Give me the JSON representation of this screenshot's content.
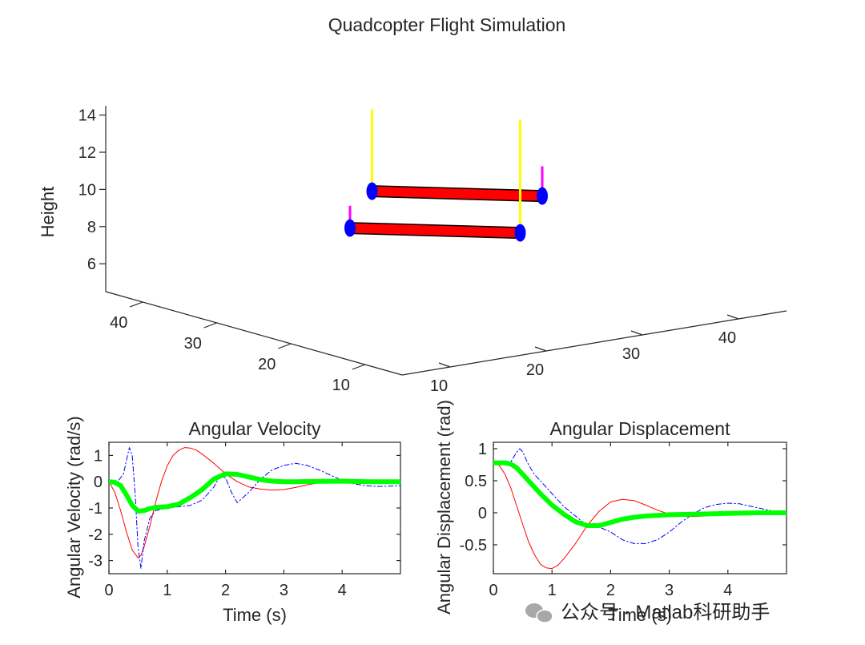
{
  "figure_title": "Quadcopter Flight Simulation",
  "watermark": "公众号 · Matlab科研助手",
  "colors": {
    "arm": "#ff0000",
    "rotor": "#0000ff",
    "thrust_main": "#ffff00",
    "thrust_small": "#ff00ff",
    "series_red": "#ff0000",
    "series_blue": "#0000ff",
    "series_green": "#00ff00"
  },
  "chart_data": [
    {
      "type": "scatter3d",
      "title": "",
      "zlabel": "Height",
      "z_ticks": [
        6,
        8,
        10,
        12,
        14
      ],
      "x_ticks": [
        10,
        20,
        30,
        40
      ],
      "y_ticks": [
        10,
        20,
        30,
        40
      ],
      "x_range": [
        5,
        45
      ],
      "y_range": [
        5,
        45
      ],
      "z_range": [
        4.5,
        14.5
      ],
      "quadcopter": {
        "center": [
          25,
          25,
          9.3
        ],
        "rotors": [
          {
            "x": 25,
            "y": 35,
            "z": 9.3
          },
          {
            "x": 35,
            "y": 25,
            "z": 9.3
          },
          {
            "x": 25,
            "y": 15,
            "z": 9.3
          },
          {
            "x": 15,
            "y": 25,
            "z": 9.3
          }
        ],
        "thrust_vectors": [
          {
            "rotor": 0,
            "length": 4.4,
            "color": "thrust_main"
          },
          {
            "rotor": 2,
            "length": 6.1,
            "color": "thrust_main"
          },
          {
            "rotor": 1,
            "length": 1.6,
            "color": "thrust_small"
          },
          {
            "rotor": 3,
            "length": 1.2,
            "color": "thrust_small"
          }
        ]
      }
    },
    {
      "type": "line",
      "title": "Angular Velocity",
      "xlabel": "Time (s)",
      "ylabel": "Angular Velocity (rad/s)",
      "xlim": [
        0,
        5
      ],
      "ylim": [
        -3.5,
        1.5
      ],
      "x_ticks": [
        0,
        1,
        2,
        3,
        4
      ],
      "y_ticks": [
        1,
        0,
        -1,
        -2,
        -3
      ],
      "series": [
        {
          "name": "red",
          "color": "series_red",
          "style": "solid",
          "width": 1,
          "x": [
            0,
            0.1,
            0.2,
            0.3,
            0.4,
            0.5,
            0.55,
            0.6,
            0.7,
            0.8,
            0.9,
            1.0,
            1.1,
            1.2,
            1.3,
            1.4,
            1.5,
            1.6,
            1.8,
            2.0,
            2.2,
            2.4,
            2.6,
            2.8,
            3.0,
            3.2,
            3.4,
            3.6,
            3.8,
            4.0,
            4.2,
            4.4,
            4.6,
            4.8,
            5.0
          ],
          "y": [
            0,
            -0.4,
            -1.1,
            -1.9,
            -2.6,
            -2.9,
            -2.8,
            -2.5,
            -1.7,
            -0.8,
            0.0,
            0.6,
            1.0,
            1.2,
            1.3,
            1.28,
            1.2,
            1.05,
            0.7,
            0.3,
            0.0,
            -0.2,
            -0.28,
            -0.32,
            -0.3,
            -0.22,
            -0.12,
            -0.04,
            0.02,
            0.06,
            0.06,
            0.04,
            0.02,
            0.0,
            0.0
          ]
        },
        {
          "name": "blue",
          "color": "series_blue",
          "style": "dashdot",
          "width": 1,
          "x": [
            0,
            0.15,
            0.25,
            0.3,
            0.35,
            0.4,
            0.45,
            0.5,
            0.55,
            0.6,
            0.7,
            0.8,
            1.0,
            1.2,
            1.4,
            1.6,
            1.8,
            1.9,
            2.0,
            2.1,
            2.2,
            2.4,
            2.6,
            2.8,
            3.0,
            3.2,
            3.4,
            3.6,
            3.8,
            4.0,
            4.2,
            4.4,
            4.6,
            4.8,
            5.0
          ],
          "y": [
            0,
            0.0,
            0.3,
            0.8,
            1.3,
            1.0,
            -0.5,
            -2.5,
            -3.3,
            -2.3,
            -1.4,
            -1.1,
            -1.0,
            -0.95,
            -0.9,
            -0.7,
            -0.2,
            0.2,
            0.15,
            -0.4,
            -0.8,
            -0.4,
            0.1,
            0.45,
            0.62,
            0.7,
            0.62,
            0.45,
            0.25,
            0.05,
            -0.08,
            -0.15,
            -0.18,
            -0.17,
            -0.15
          ]
        },
        {
          "name": "green",
          "color": "series_green",
          "style": "solid",
          "width": 6,
          "x": [
            0,
            0.1,
            0.2,
            0.3,
            0.4,
            0.5,
            0.6,
            0.7,
            0.8,
            1.0,
            1.2,
            1.4,
            1.6,
            1.8,
            2.0,
            2.2,
            2.4,
            2.6,
            2.8,
            3.0,
            3.2,
            3.5,
            4.0,
            4.5,
            5.0
          ],
          "y": [
            0,
            -0.02,
            -0.15,
            -0.5,
            -0.9,
            -1.12,
            -1.1,
            -1.02,
            -0.98,
            -0.95,
            -0.85,
            -0.6,
            -0.3,
            0.1,
            0.3,
            0.28,
            0.18,
            0.08,
            0.02,
            0.0,
            0.0,
            0.01,
            0.02,
            0.0,
            0.0
          ]
        }
      ]
    },
    {
      "type": "line",
      "title": "Angular Displacement",
      "xlabel": "Time (s)",
      "ylabel": "Angular Displacement (rad)",
      "xlim": [
        0,
        5
      ],
      "ylim": [
        -0.95,
        1.1
      ],
      "x_ticks": [
        0,
        1,
        2,
        3,
        4
      ],
      "y_ticks": [
        1,
        0.5,
        0,
        -0.5
      ],
      "series": [
        {
          "name": "red",
          "color": "series_red",
          "style": "solid",
          "width": 1,
          "x": [
            0,
            0.1,
            0.2,
            0.3,
            0.4,
            0.5,
            0.6,
            0.7,
            0.8,
            0.9,
            1.0,
            1.1,
            1.2,
            1.4,
            1.6,
            1.8,
            2.0,
            2.2,
            2.4,
            2.6,
            2.8,
            3.0,
            3.2,
            3.4,
            3.6,
            3.8,
            4.0,
            4.5,
            5.0
          ],
          "y": [
            0.78,
            0.74,
            0.6,
            0.38,
            0.1,
            -0.18,
            -0.45,
            -0.65,
            -0.8,
            -0.86,
            -0.87,
            -0.82,
            -0.72,
            -0.48,
            -0.2,
            0.02,
            0.17,
            0.21,
            0.19,
            0.12,
            0.04,
            -0.02,
            -0.05,
            -0.06,
            -0.05,
            -0.03,
            -0.01,
            0.0,
            0.0
          ]
        },
        {
          "name": "blue",
          "color": "series_blue",
          "style": "dashdot",
          "width": 1,
          "x": [
            0,
            0.2,
            0.3,
            0.4,
            0.45,
            0.5,
            0.6,
            0.7,
            0.8,
            1.0,
            1.2,
            1.4,
            1.6,
            1.8,
            2.0,
            2.2,
            2.4,
            2.6,
            2.8,
            3.0,
            3.2,
            3.4,
            3.6,
            3.8,
            4.0,
            4.2,
            4.4,
            4.6,
            4.8,
            5.0
          ],
          "y": [
            0.78,
            0.78,
            0.8,
            0.95,
            1.0,
            0.95,
            0.75,
            0.6,
            0.5,
            0.3,
            0.1,
            -0.05,
            -0.2,
            -0.22,
            -0.3,
            -0.42,
            -0.48,
            -0.48,
            -0.42,
            -0.3,
            -0.15,
            -0.02,
            0.08,
            0.13,
            0.15,
            0.14,
            0.1,
            0.06,
            0.02,
            0.0
          ]
        },
        {
          "name": "green",
          "color": "series_green",
          "style": "solid",
          "width": 6,
          "x": [
            0,
            0.2,
            0.3,
            0.4,
            0.5,
            0.6,
            0.8,
            1.0,
            1.2,
            1.4,
            1.6,
            1.8,
            2.0,
            2.2,
            2.4,
            2.6,
            2.8,
            3.0,
            3.5,
            4.0,
            4.5,
            5.0
          ],
          "y": [
            0.78,
            0.78,
            0.76,
            0.7,
            0.6,
            0.5,
            0.3,
            0.12,
            -0.02,
            -0.14,
            -0.2,
            -0.2,
            -0.15,
            -0.1,
            -0.07,
            -0.05,
            -0.04,
            -0.03,
            -0.02,
            -0.01,
            0.0,
            0.0
          ]
        }
      ]
    }
  ]
}
